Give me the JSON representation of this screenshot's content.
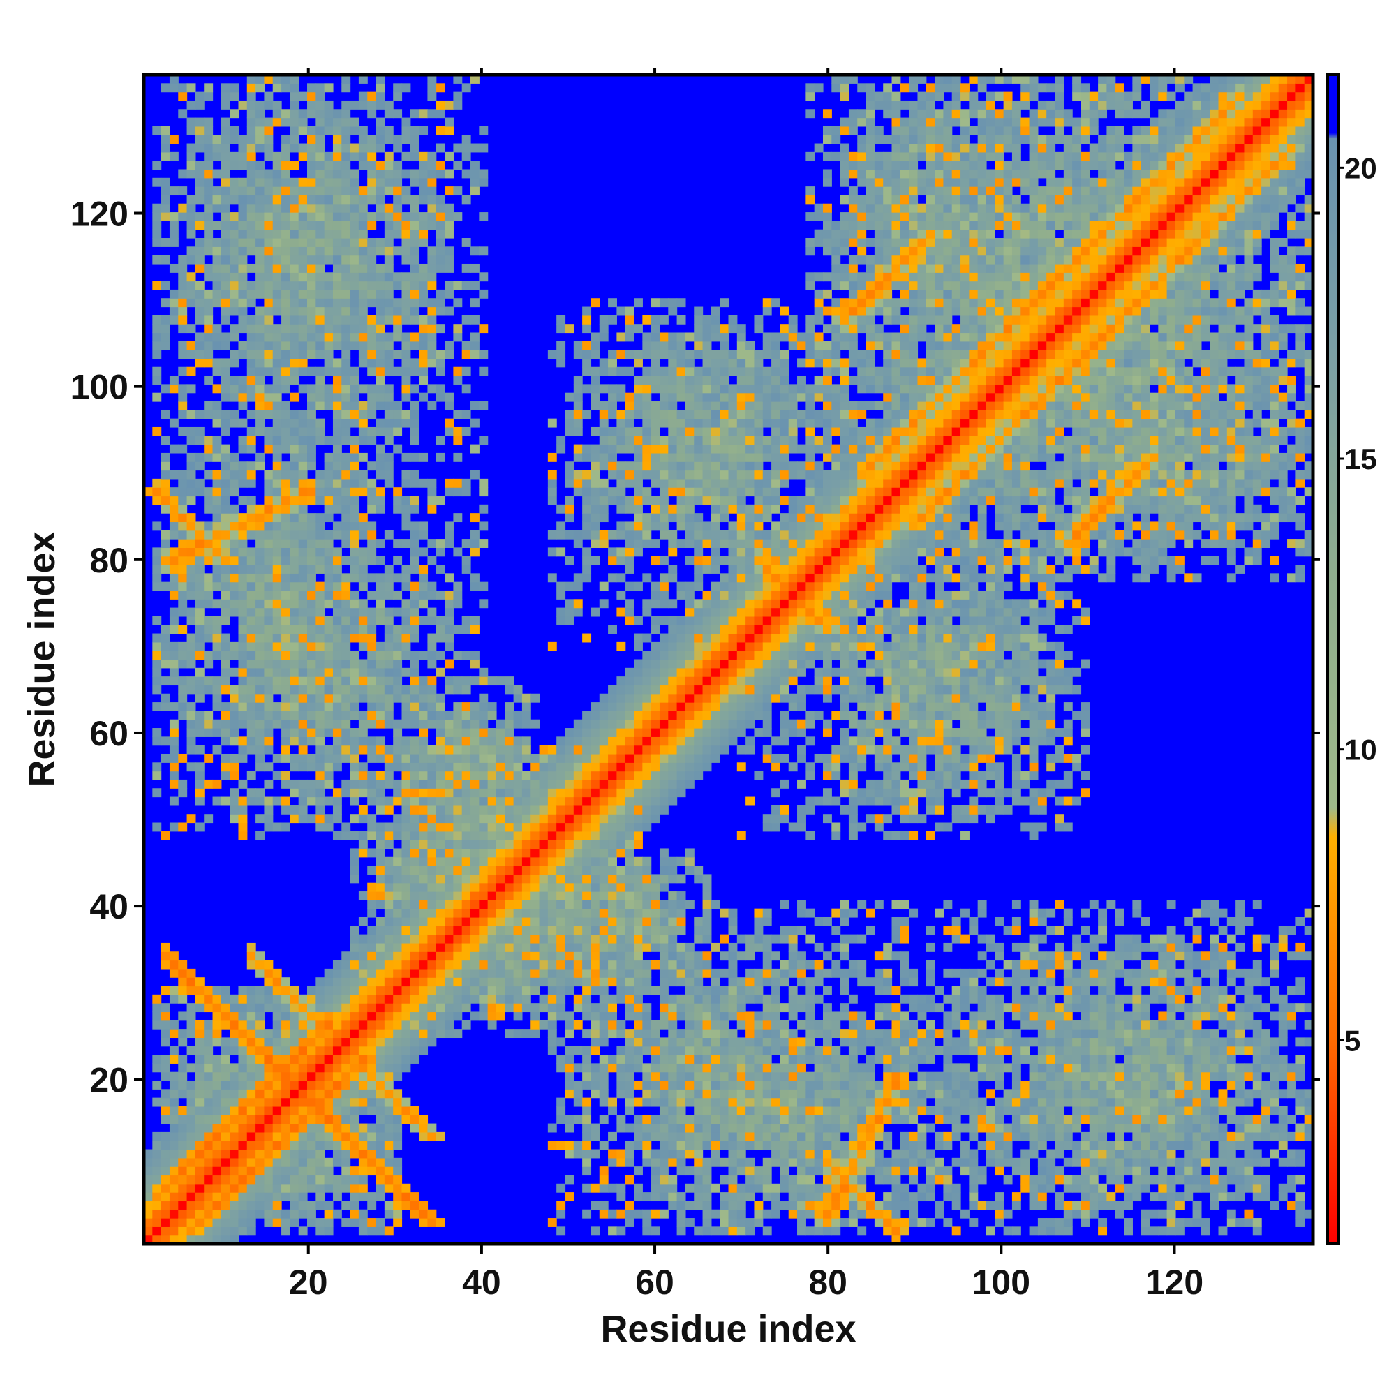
{
  "chart_data": {
    "type": "heatmap",
    "title": "",
    "xlabel": "Residue index",
    "ylabel": "Residue index",
    "n_residues": 136,
    "xlim": [
      1,
      136
    ],
    "ylim": [
      1,
      136
    ],
    "x_ticks": [
      "20",
      "40",
      "60",
      "80",
      "100",
      "120"
    ],
    "y_ticks": [
      "20",
      "40",
      "60",
      "80",
      "100",
      "120"
    ],
    "colorbar": {
      "ticks": [
        "5",
        "10",
        "15",
        "20"
      ],
      "min": 1.5,
      "max": 21.6,
      "cutoff": 20.5,
      "stops": [
        {
          "value": 1.5,
          "color": "#ff0000"
        },
        {
          "value": 5.0,
          "color": "#ff6a00"
        },
        {
          "value": 8.5,
          "color": "#ffb000"
        },
        {
          "value": 9.0,
          "color": "#9fb98a"
        },
        {
          "value": 13.0,
          "color": "#8fad8e"
        },
        {
          "value": 17.0,
          "color": "#7a9fa6"
        },
        {
          "value": 20.5,
          "color": "#6a93b0"
        },
        {
          "value": 20.6,
          "color": "#0000ff"
        },
        {
          "value": 21.6,
          "color": "#0000ff"
        }
      ]
    },
    "secondary_structure_contacts": [
      {
        "type": "parallel",
        "a": [
          2,
          22
        ],
        "b": [
          6,
          26
        ],
        "value": 5
      },
      {
        "type": "antiparallel",
        "i0": 3,
        "j0": 34,
        "length": 16,
        "value": 5
      },
      {
        "type": "antiparallel",
        "i0": 13,
        "j0": 34,
        "length": 12,
        "value": 6
      },
      {
        "type": "parallel",
        "a": [
          3,
          20
        ],
        "b": [
          80,
          88
        ],
        "value": 6
      },
      {
        "type": "antiparallel",
        "i0": 80,
        "j0": 10,
        "length": 8,
        "value": 6
      },
      {
        "type": "parallel",
        "a": [
          84,
          110
        ],
        "b": [
          90,
          116
        ],
        "value": 6
      },
      {
        "type": "parallel",
        "a": [
          104,
          128
        ],
        "b": [
          110,
          134
        ],
        "value": 6
      },
      {
        "type": "antiparallel",
        "i0": 72,
        "j0": 80,
        "length": 6,
        "value": 6
      },
      {
        "type": "parallel",
        "a": [
          108,
          118
        ],
        "b": [
          82,
          92
        ],
        "value": 6
      }
    ],
    "contact_regions": [
      {
        "x": [
          2,
          30
        ],
        "y": [
          2,
          30
        ],
        "value": 14
      },
      {
        "x": [
          2,
          36
        ],
        "y": [
          100,
          136
        ],
        "value": 15
      },
      {
        "x": [
          2,
          30
        ],
        "y": [
          50,
          100
        ],
        "value": 15
      },
      {
        "x": [
          25,
          58
        ],
        "y": [
          28,
          58
        ],
        "value": 13
      },
      {
        "x": [
          48,
          84
        ],
        "y": [
          70,
          110
        ],
        "value": 15
      },
      {
        "x": [
          80,
          136
        ],
        "y": [
          78,
          136
        ],
        "value": 14
      },
      {
        "x": [
          82,
          108
        ],
        "y": [
          50,
          80
        ],
        "value": 15
      },
      {
        "x": [
          48,
          90
        ],
        "y": [
          2,
          40
        ],
        "value": 15
      },
      {
        "x": [
          88,
          136
        ],
        "y": [
          2,
          40
        ],
        "value": 15
      },
      {
        "x": [
          46,
          66
        ],
        "y": [
          30,
          46
        ],
        "value": 13
      },
      {
        "x": [
          110,
          136
        ],
        "y": [
          82,
          100
        ],
        "value": 15
      }
    ]
  }
}
